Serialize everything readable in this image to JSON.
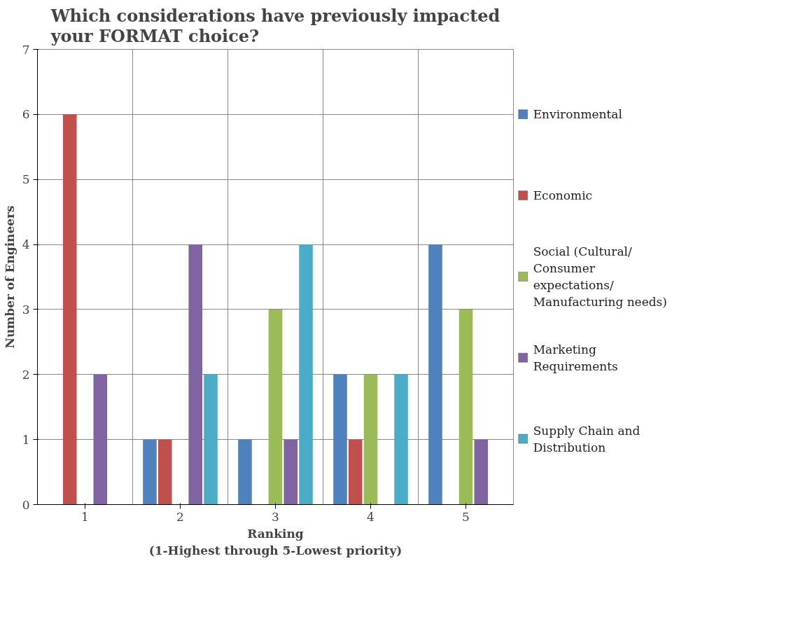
{
  "chart_data": {
    "type": "bar",
    "title": "Which considerations have previously impacted your FORMAT choice?",
    "xlabel": "Ranking\n(1-Highest through 5-Lowest priority)",
    "ylabel": "Number of Engineers",
    "categories": [
      "1",
      "2",
      "3",
      "4",
      "5"
    ],
    "series": [
      {
        "name": "Environmental",
        "color": "#4f81bd",
        "values": [
          0,
          1,
          1,
          2,
          4
        ]
      },
      {
        "name": "Economic",
        "color": "#c0504d",
        "values": [
          6,
          1,
          0,
          1,
          0
        ]
      },
      {
        "name": "Social (Cultural/ Consumer expectations/ Manufacturing needs)",
        "color": "#9bbb59",
        "values": [
          0,
          0,
          3,
          2,
          3
        ]
      },
      {
        "name": "Marketing Requirements",
        "color": "#8064a2",
        "values": [
          2,
          4,
          1,
          0,
          1
        ]
      },
      {
        "name": "Supply Chain and Distribution",
        "color": "#4bacc6",
        "values": [
          0,
          2,
          4,
          2,
          0
        ]
      }
    ],
    "ylim": [
      0,
      7
    ],
    "yticks": [
      0,
      1,
      2,
      3,
      4,
      5,
      6,
      7
    ],
    "grid": true,
    "legend": "right"
  }
}
